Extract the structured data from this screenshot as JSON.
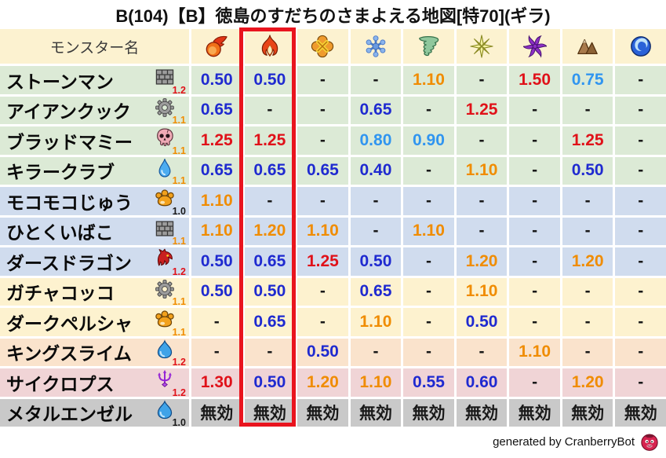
{
  "title": "B(104)【B】徳島のすだちのさまよえる地図[特70](ギラ)",
  "header": {
    "monster_col_label": "モンスター名",
    "element_icons": [
      "fireball-icon",
      "flame-icon",
      "burst-icon",
      "snowflake-icon",
      "tornado-icon",
      "spark-icon",
      "pinwheel-icon",
      "mountain-icon",
      "wave-icon"
    ],
    "highlighted_column": "flame-icon"
  },
  "rows": [
    {
      "name": "ストーンマン",
      "icon": "brick-icon",
      "level": "1.2",
      "level_color": "red",
      "group": "green",
      "cells": [
        {
          "v": "0.50",
          "c": "blue"
        },
        {
          "v": "0.50",
          "c": "blue"
        },
        {
          "v": "-",
          "c": "black"
        },
        {
          "v": "-",
          "c": "black"
        },
        {
          "v": "1.10",
          "c": "orange"
        },
        {
          "v": "-",
          "c": "black"
        },
        {
          "v": "1.50",
          "c": "red"
        },
        {
          "v": "0.75",
          "c": "lightblue"
        },
        {
          "v": "-",
          "c": "black"
        }
      ]
    },
    {
      "name": "アイアンクック",
      "icon": "gear-icon",
      "level": "1.1",
      "level_color": "orange",
      "group": "green",
      "cells": [
        {
          "v": "0.65",
          "c": "blue"
        },
        {
          "v": "-",
          "c": "black"
        },
        {
          "v": "-",
          "c": "black"
        },
        {
          "v": "0.65",
          "c": "blue"
        },
        {
          "v": "-",
          "c": "black"
        },
        {
          "v": "1.25",
          "c": "red"
        },
        {
          "v": "-",
          "c": "black"
        },
        {
          "v": "-",
          "c": "black"
        },
        {
          "v": "-",
          "c": "black"
        }
      ]
    },
    {
      "name": "ブラッドマミー",
      "icon": "skull-icon",
      "level": "1.1",
      "level_color": "orange",
      "group": "green",
      "cells": [
        {
          "v": "1.25",
          "c": "red"
        },
        {
          "v": "1.25",
          "c": "red"
        },
        {
          "v": "-",
          "c": "black"
        },
        {
          "v": "0.80",
          "c": "lightblue"
        },
        {
          "v": "0.90",
          "c": "lightblue"
        },
        {
          "v": "-",
          "c": "black"
        },
        {
          "v": "-",
          "c": "black"
        },
        {
          "v": "1.25",
          "c": "red"
        },
        {
          "v": "-",
          "c": "black"
        }
      ]
    },
    {
      "name": "キラークラブ",
      "icon": "droplet-icon",
      "level": "1.1",
      "level_color": "orange",
      "group": "green",
      "cells": [
        {
          "v": "0.65",
          "c": "blue"
        },
        {
          "v": "0.65",
          "c": "blue"
        },
        {
          "v": "0.65",
          "c": "blue"
        },
        {
          "v": "0.40",
          "c": "blue"
        },
        {
          "v": "-",
          "c": "black"
        },
        {
          "v": "1.10",
          "c": "orange"
        },
        {
          "v": "-",
          "c": "black"
        },
        {
          "v": "0.50",
          "c": "blue"
        },
        {
          "v": "-",
          "c": "black"
        }
      ]
    },
    {
      "name": "モコモコじゅう",
      "icon": "paw-icon",
      "level": "1.0",
      "level_color": "black",
      "group": "blue",
      "cells": [
        {
          "v": "1.10",
          "c": "orange"
        },
        {
          "v": "-",
          "c": "black"
        },
        {
          "v": "-",
          "c": "black"
        },
        {
          "v": "-",
          "c": "black"
        },
        {
          "v": "-",
          "c": "black"
        },
        {
          "v": "-",
          "c": "black"
        },
        {
          "v": "-",
          "c": "black"
        },
        {
          "v": "-",
          "c": "black"
        },
        {
          "v": "-",
          "c": "black"
        }
      ]
    },
    {
      "name": "ひとくいばこ",
      "icon": "brick-icon",
      "level": "1.1",
      "level_color": "orange",
      "group": "blue",
      "cells": [
        {
          "v": "1.10",
          "c": "orange"
        },
        {
          "v": "1.20",
          "c": "orange"
        },
        {
          "v": "1.10",
          "c": "orange"
        },
        {
          "v": "-",
          "c": "black"
        },
        {
          "v": "1.10",
          "c": "orange"
        },
        {
          "v": "-",
          "c": "black"
        },
        {
          "v": "-",
          "c": "black"
        },
        {
          "v": "-",
          "c": "black"
        },
        {
          "v": "-",
          "c": "black"
        }
      ]
    },
    {
      "name": "ダースドラゴン",
      "icon": "dragon-icon",
      "level": "1.2",
      "level_color": "red",
      "group": "blue",
      "cells": [
        {
          "v": "0.50",
          "c": "blue"
        },
        {
          "v": "0.65",
          "c": "blue"
        },
        {
          "v": "1.25",
          "c": "red"
        },
        {
          "v": "0.50",
          "c": "blue"
        },
        {
          "v": "-",
          "c": "black"
        },
        {
          "v": "1.20",
          "c": "orange"
        },
        {
          "v": "-",
          "c": "black"
        },
        {
          "v": "1.20",
          "c": "orange"
        },
        {
          "v": "-",
          "c": "black"
        }
      ]
    },
    {
      "name": "ガチャコッコ",
      "icon": "gear-icon",
      "level": "1.1",
      "level_color": "orange",
      "group": "cream",
      "cells": [
        {
          "v": "0.50",
          "c": "blue"
        },
        {
          "v": "0.50",
          "c": "blue"
        },
        {
          "v": "-",
          "c": "black"
        },
        {
          "v": "0.65",
          "c": "blue"
        },
        {
          "v": "-",
          "c": "black"
        },
        {
          "v": "1.10",
          "c": "orange"
        },
        {
          "v": "-",
          "c": "black"
        },
        {
          "v": "-",
          "c": "black"
        },
        {
          "v": "-",
          "c": "black"
        }
      ]
    },
    {
      "name": "ダークペルシャ",
      "icon": "paw-icon",
      "level": "1.1",
      "level_color": "orange",
      "group": "cream",
      "cells": [
        {
          "v": "-",
          "c": "black"
        },
        {
          "v": "0.65",
          "c": "blue"
        },
        {
          "v": "-",
          "c": "black"
        },
        {
          "v": "1.10",
          "c": "orange"
        },
        {
          "v": "-",
          "c": "black"
        },
        {
          "v": "0.50",
          "c": "blue"
        },
        {
          "v": "-",
          "c": "black"
        },
        {
          "v": "-",
          "c": "black"
        },
        {
          "v": "-",
          "c": "black"
        }
      ]
    },
    {
      "name": "キングスライム",
      "icon": "slime-icon",
      "level": "1.2",
      "level_color": "red",
      "group": "peach",
      "cells": [
        {
          "v": "-",
          "c": "black"
        },
        {
          "v": "-",
          "c": "black"
        },
        {
          "v": "0.50",
          "c": "blue"
        },
        {
          "v": "-",
          "c": "black"
        },
        {
          "v": "-",
          "c": "black"
        },
        {
          "v": "-",
          "c": "black"
        },
        {
          "v": "1.10",
          "c": "orange"
        },
        {
          "v": "-",
          "c": "black"
        },
        {
          "v": "-",
          "c": "black"
        }
      ]
    },
    {
      "name": "サイクロプス",
      "icon": "trident-icon",
      "level": "1.2",
      "level_color": "red",
      "group": "pink",
      "cells": [
        {
          "v": "1.30",
          "c": "red"
        },
        {
          "v": "0.50",
          "c": "blue"
        },
        {
          "v": "1.20",
          "c": "orange"
        },
        {
          "v": "1.10",
          "c": "orange"
        },
        {
          "v": "0.55",
          "c": "blue"
        },
        {
          "v": "0.60",
          "c": "blue"
        },
        {
          "v": "-",
          "c": "black"
        },
        {
          "v": "1.20",
          "c": "orange"
        },
        {
          "v": "-",
          "c": "black"
        }
      ]
    },
    {
      "name": "メタルエンゼル",
      "icon": "slime-icon",
      "level": "1.0",
      "level_color": "black",
      "group": "gray",
      "cells": [
        {
          "v": "無効",
          "c": "black"
        },
        {
          "v": "無効",
          "c": "black"
        },
        {
          "v": "無効",
          "c": "black"
        },
        {
          "v": "無効",
          "c": "black"
        },
        {
          "v": "無効",
          "c": "black"
        },
        {
          "v": "無効",
          "c": "black"
        },
        {
          "v": "無効",
          "c": "black"
        },
        {
          "v": "無効",
          "c": "black"
        },
        {
          "v": "無効",
          "c": "black"
        }
      ]
    }
  ],
  "footer": {
    "credit": "generated by CranberryBot"
  },
  "palette": {
    "title_color": "#111111",
    "header_bg": "#fcf2d0",
    "row_green": "#dcead6",
    "row_blue": "#d0dcee",
    "row_cream": "#fdf2cf",
    "row_peach": "#fae3cc",
    "row_pink": "#f0d4d6",
    "row_gray": "#c9c9c9",
    "value_blue": "#1f2ad0",
    "value_lightblue": "#3095f0",
    "value_orange": "#f08c00",
    "value_red": "#e01119",
    "value_black": "#191919",
    "highlight_red": "#e9141e"
  },
  "chart_data": {
    "type": "table",
    "title": "B(104)【B】徳島のすだちのさまよえる地図[特70](ギラ)",
    "columns": [
      "モンスター名",
      "fireball",
      "flame",
      "burst",
      "snowflake",
      "tornado",
      "spark",
      "pinwheel",
      "mountain",
      "wave"
    ],
    "highlighted_column": "flame",
    "rows": [
      [
        "ストーンマン",
        "0.50",
        "0.50",
        "-",
        "-",
        "1.10",
        "-",
        "1.50",
        "0.75",
        "-"
      ],
      [
        "アイアンクック",
        "0.65",
        "-",
        "-",
        "0.65",
        "-",
        "1.25",
        "-",
        "-",
        "-"
      ],
      [
        "ブラッドマミー",
        "1.25",
        "1.25",
        "-",
        "0.80",
        "0.90",
        "-",
        "-",
        "1.25",
        "-"
      ],
      [
        "キラークラブ",
        "0.65",
        "0.65",
        "0.65",
        "0.40",
        "-",
        "1.10",
        "-",
        "0.50",
        "-"
      ],
      [
        "モコモコじゅう",
        "1.10",
        "-",
        "-",
        "-",
        "-",
        "-",
        "-",
        "-",
        "-"
      ],
      [
        "ひとくいばこ",
        "1.10",
        "1.20",
        "1.10",
        "-",
        "1.10",
        "-",
        "-",
        "-",
        "-"
      ],
      [
        "ダースドラゴン",
        "0.50",
        "0.65",
        "1.25",
        "0.50",
        "-",
        "1.20",
        "-",
        "1.20",
        "-"
      ],
      [
        "ガチャコッコ",
        "0.50",
        "0.50",
        "-",
        "0.65",
        "-",
        "1.10",
        "-",
        "-",
        "-"
      ],
      [
        "ダークペルシャ",
        "-",
        "0.65",
        "-",
        "1.10",
        "-",
        "0.50",
        "-",
        "-",
        "-"
      ],
      [
        "キングスライム",
        "-",
        "-",
        "0.50",
        "-",
        "-",
        "-",
        "1.10",
        "-",
        "-"
      ],
      [
        "サイクロプス",
        "1.30",
        "0.50",
        "1.20",
        "1.10",
        "0.55",
        "0.60",
        "-",
        "1.20",
        "-"
      ],
      [
        "メタルエンゼル",
        "無効",
        "無効",
        "無効",
        "無効",
        "無効",
        "無効",
        "無効",
        "無効",
        "無効"
      ]
    ],
    "row_multipliers": [
      "1.2",
      "1.1",
      "1.1",
      "1.1",
      "1.0",
      "1.1",
      "1.2",
      "1.1",
      "1.1",
      "1.2",
      "1.2",
      "1.0"
    ]
  }
}
